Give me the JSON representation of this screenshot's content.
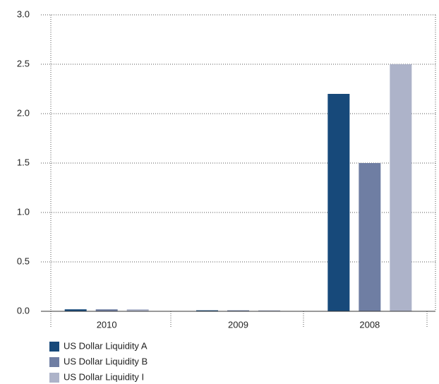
{
  "chart_data": {
    "type": "bar",
    "categories": [
      "2010",
      "2009",
      "2008"
    ],
    "series": [
      {
        "name": "US Dollar Liquidity A",
        "color": "#17497a",
        "values": [
          0.02,
          0.01,
          2.2
        ]
      },
      {
        "name": "US Dollar Liquidity B",
        "color": "#6f7ea3",
        "values": [
          0.02,
          0.01,
          1.5
        ]
      },
      {
        "name": "US Dollar Liquidity I",
        "color": "#adb3c9",
        "values": [
          0.02,
          0.01,
          2.5
        ]
      }
    ],
    "ylim": [
      0,
      3.0
    ],
    "yticks": [
      {
        "value": 0,
        "label": "0.0"
      },
      0.5,
      {
        "value": 1,
        "label": "1.0"
      },
      1.5,
      {
        "value": 2,
        "label": "2.0"
      },
      2.5,
      {
        "value": 3,
        "label": "3.0"
      }
    ],
    "grid": true
  }
}
